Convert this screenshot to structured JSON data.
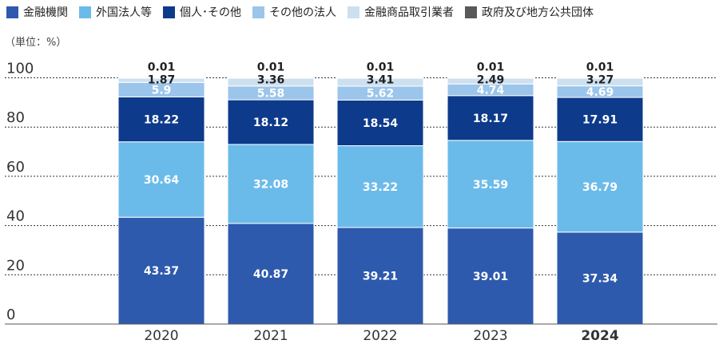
{
  "unit_label": "（単位：%）",
  "chart_data": {
    "type": "bar",
    "stacked": true,
    "categories": [
      "2020",
      "2021",
      "2022",
      "2023",
      "2024"
    ],
    "highlight_category": "2024",
    "ylim": [
      0,
      100
    ],
    "yticks": [
      0,
      20,
      40,
      60,
      80,
      100
    ],
    "grid": "horizontal dotted",
    "legend_position": "top",
    "series": [
      {
        "name": "金融機関",
        "color": "#2e5aad",
        "values": [
          43.37,
          40.87,
          39.21,
          39.01,
          37.34
        ]
      },
      {
        "name": "外国法人等",
        "color": "#6bbbea",
        "values": [
          30.64,
          32.08,
          33.22,
          35.59,
          36.79
        ]
      },
      {
        "name": "個人･その他",
        "color": "#0d3a8a",
        "values": [
          18.22,
          18.12,
          18.54,
          18.17,
          17.91
        ]
      },
      {
        "name": "その他の法人",
        "color": "#9bc5ea",
        "values": [
          5.9,
          5.58,
          5.62,
          4.74,
          4.69
        ]
      },
      {
        "name": "金融商品取引業者",
        "color": "#cde0f0",
        "values": [
          1.87,
          3.36,
          3.41,
          2.49,
          3.27
        ]
      },
      {
        "name": "政府及び地方公共団体",
        "color": "#595959",
        "values": [
          0.01,
          0.01,
          0.01,
          0.01,
          0.01
        ]
      }
    ],
    "data_labels": [
      [
        "43.37",
        "30.64",
        "18.22",
        "5.9",
        "1.87",
        "0.01"
      ],
      [
        "40.87",
        "32.08",
        "18.12",
        "5.58",
        "3.36",
        "0.01"
      ],
      [
        "39.21",
        "33.22",
        "18.54",
        "5.62",
        "3.41",
        "0.01"
      ],
      [
        "39.01",
        "35.59",
        "18.17",
        "4.74",
        "2.49",
        "0.01"
      ],
      [
        "37.34",
        "36.79",
        "17.91",
        "4.69",
        "3.27",
        "0.01"
      ]
    ]
  }
}
